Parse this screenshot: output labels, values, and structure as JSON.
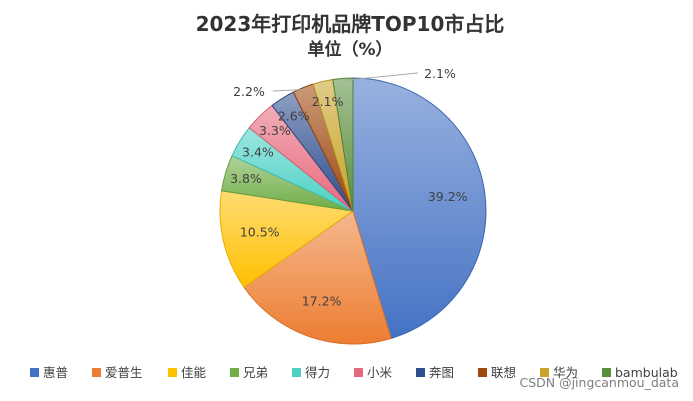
{
  "chart_data": {
    "type": "pie",
    "title": "2023年打印机品牌TOP10市占比",
    "subtitle": "单位（%）",
    "categories": [
      "惠普",
      "爱普生",
      "佳能",
      "兄弟",
      "得力",
      "小米",
      "奔图",
      "联想",
      "华为",
      "bambulab"
    ],
    "values": [
      39.2,
      17.2,
      10.5,
      3.8,
      3.4,
      3.3,
      2.6,
      2.2,
      2.1,
      2.1
    ],
    "labels": [
      "39.2%",
      "17.2%",
      "10.5%",
      "3.8%",
      "3.4%",
      "3.3%",
      "2.6%",
      "2.2%",
      "2.1%",
      "2.1%"
    ],
    "colors": [
      "#4472C4",
      "#ED7D31",
      "#FFC000",
      "#70AD47",
      "#4BD1C5",
      "#E8697E",
      "#2F4E8E",
      "#9E480E",
      "#C9A227",
      "#5A8F3C"
    ],
    "legend_position": "bottom",
    "start_angle": "12 o'clock",
    "direction": "clockwise"
  },
  "watermark": "CSDN @jingcanmou_data"
}
